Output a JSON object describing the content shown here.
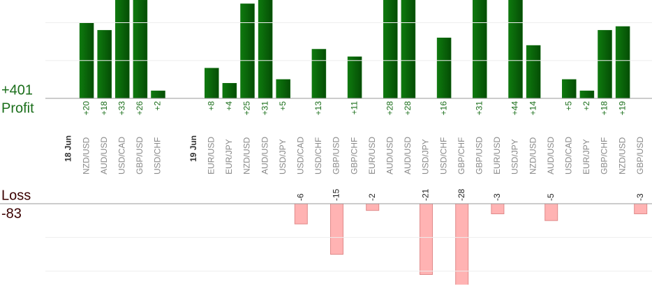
{
  "chart_data": {
    "type": "bar",
    "profit_total": {
      "value": 401,
      "label": "+401",
      "title": "Profit"
    },
    "loss_total": {
      "value": -83,
      "title": "Loss"
    },
    "profit_axis": {
      "ylim": [
        0,
        26
      ],
      "yticks": [
        10,
        20
      ]
    },
    "loss_axis": {
      "ylim": [
        -24,
        0
      ],
      "yticks": [
        -10,
        -20
      ]
    },
    "profit_color": "#0b6a0b",
    "loss_color": "#ffb3b3",
    "groups": [
      {
        "date": "18 Jun",
        "columns": [
          {
            "pair": "NZD/USD",
            "value": 20,
            "value_label": "+20"
          },
          {
            "pair": "AUD/USD",
            "value": 18,
            "value_label": "+18"
          },
          {
            "pair": "USD/CAD",
            "value": 33,
            "value_label": "+33"
          },
          {
            "pair": "GBP/USD",
            "value": 26,
            "value_label": "+26"
          },
          {
            "pair": "USD/CHF",
            "value": 2,
            "value_label": "+2"
          }
        ]
      },
      {
        "date": "19 Jun",
        "columns": [
          {
            "pair": "EUR/USD",
            "value": 8,
            "value_label": "+8"
          },
          {
            "pair": "EUR/JPY",
            "value": 4,
            "value_label": "+4"
          },
          {
            "pair": "NZD/USD",
            "value": 25,
            "value_label": "+25"
          },
          {
            "pair": "AUD/USD",
            "value": 31,
            "value_label": "+31"
          },
          {
            "pair": "USD/JPY",
            "value": 5,
            "value_label": "+5"
          },
          {
            "pair": "USD/CAD",
            "value": -6
          },
          {
            "pair": "USD/CHF",
            "value": 13,
            "value_label": "+13"
          },
          {
            "pair": "GBP/USD",
            "value": -15
          },
          {
            "pair": "GBP/CHF",
            "value": 11,
            "value_label": "+11"
          },
          {
            "pair": "EUR/USD",
            "value": -2
          },
          {
            "pair": "AUD/USD",
            "value": 28,
            "value_label": "+28"
          },
          {
            "pair": "AUD/USD",
            "value": 28,
            "value_label": "+28"
          },
          {
            "pair": "USD/JPY",
            "value": -21
          },
          {
            "pair": "USD/CHF",
            "value": 16,
            "value_label": "+16"
          },
          {
            "pair": "GBP/CHF",
            "value": -28
          },
          {
            "pair": "GBP/USD",
            "value": 31,
            "value_label": "+31"
          },
          {
            "pair": "EUR/USD",
            "value": -3
          },
          {
            "pair": "USD/JPY",
            "value": 44,
            "value_label": "+44"
          },
          {
            "pair": "NZD/USD",
            "value": 14,
            "value_label": "+14"
          },
          {
            "pair": "AUD/USD",
            "value": -5
          },
          {
            "pair": "USD/CAD",
            "value": 5,
            "value_label": "+5"
          },
          {
            "pair": "EUR/JPY",
            "value": 2,
            "value_label": "+2"
          },
          {
            "pair": "GBP/CHF",
            "value": 18,
            "value_label": "+18"
          },
          {
            "pair": "NZD/USD",
            "value": 19,
            "value_label": "+19"
          },
          {
            "pair": "GBP/USD",
            "value": -3
          }
        ]
      }
    ]
  }
}
